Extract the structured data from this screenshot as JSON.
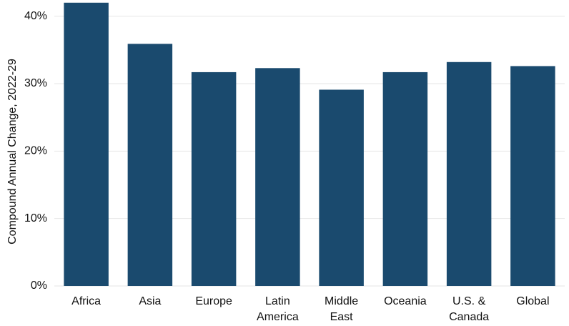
{
  "chart_data": {
    "type": "bar",
    "y_label": "Compound Annual Change, 2022-29",
    "categories": [
      "Africa",
      "Asia",
      "Europe",
      "Latin\nAmerica",
      "Middle\nEast",
      "Oceania",
      "U.S. &\nCanada",
      "Global"
    ],
    "values": [
      42.0,
      35.9,
      31.7,
      32.3,
      29.1,
      31.7,
      33.2,
      32.6
    ],
    "color": "#1a4a6e",
    "ylim": [
      0,
      42.4
    ],
    "yticks": [
      {
        "value": 0,
        "label": "0%"
      },
      {
        "value": 10,
        "label": "10%"
      },
      {
        "value": 20,
        "label": "20%"
      },
      {
        "value": 30,
        "label": "30%"
      },
      {
        "value": 40,
        "label": "40%"
      }
    ],
    "grid": true
  }
}
